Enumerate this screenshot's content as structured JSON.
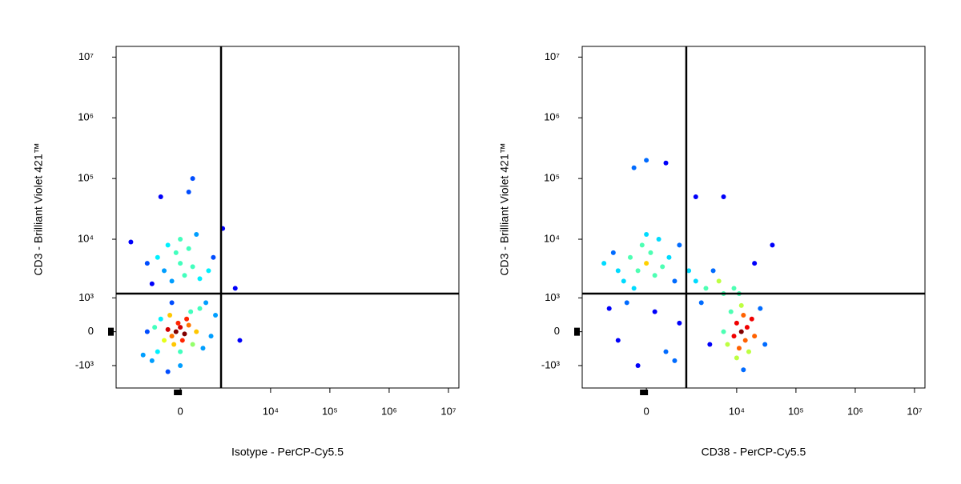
{
  "chart_data": [
    {
      "type": "scatter",
      "xlabel": "Isotype - PerCP-Cy5.5",
      "ylabel": "CD3 - Brilliant Violet 421™",
      "scale": "biexponential",
      "xlim": [
        -3600,
        15000000
      ],
      "ylim": [
        -2500,
        15000000
      ],
      "xticks": [
        0,
        {
          "value": 10000,
          "label": "10⁴"
        },
        {
          "value": 100000,
          "label": "10⁵"
        },
        {
          "value": 1000000,
          "label": "10⁶"
        },
        {
          "value": 10000000,
          "label": "10⁷"
        }
      ],
      "yticks": [
        {
          "value": -1000,
          "label": "-10³"
        },
        0,
        {
          "value": 1000,
          "label": "10³"
        },
        {
          "value": 10000,
          "label": "10⁴"
        },
        {
          "value": 100000,
          "label": "10⁵"
        },
        {
          "value": 1000000,
          "label": "10⁶"
        },
        {
          "value": 10000000,
          "label": "10⁷"
        }
      ],
      "gate": {
        "x": 1400,
        "y": 1200
      },
      "x": [
        -100,
        0,
        -200,
        100,
        -50,
        50,
        -300,
        200,
        -150,
        150,
        -400,
        300,
        -250,
        250,
        0,
        -500,
        400,
        -600,
        500,
        -700,
        600,
        -800,
        700,
        -1000,
        900,
        0,
        -200,
        -1200,
        1100,
        -300,
        -200,
        100,
        -400,
        300,
        0,
        -600,
        500,
        -100,
        200,
        -800,
        800,
        -300,
        0,
        -1000,
        1000,
        400,
        -500,
        300,
        200,
        2500,
        3000,
        -2000,
        1500
      ],
      "y": [
        0,
        100,
        -100,
        -50,
        200,
        -200,
        50,
        150,
        -300,
        300,
        -200,
        -300,
        400,
        500,
        -500,
        300,
        0,
        -500,
        600,
        100,
        -400,
        -800,
        800,
        0,
        -100,
        -1000,
        800,
        -600,
        400,
        -1300,
        2000,
        2500,
        3000,
        3500,
        4000,
        5000,
        2200,
        6000,
        7000,
        1800,
        3000,
        8000,
        10000,
        4000,
        5000,
        12000,
        50000,
        100000,
        60000,
        1500,
        -200,
        9000,
        15000
      ]
    },
    {
      "type": "scatter",
      "xlabel": "CD38 - PerCP-Cy5.5",
      "ylabel": "CD3 - Brilliant Violet 421™",
      "scale": "biexponential",
      "xlim": [
        -3600,
        15000000
      ],
      "ylim": [
        -2500,
        15000000
      ],
      "xticks": [
        0,
        {
          "value": 10000,
          "label": "10⁴"
        },
        {
          "value": 100000,
          "label": "10⁵"
        },
        {
          "value": 1000000,
          "label": "10⁶"
        },
        {
          "value": 10000000,
          "label": "10⁷"
        }
      ],
      "yticks": [
        {
          "value": -1000,
          "label": "-10³"
        },
        0,
        {
          "value": 1000,
          "label": "10³"
        },
        {
          "value": 10000,
          "label": "10⁴"
        },
        {
          "value": 100000,
          "label": "10⁵"
        },
        {
          "value": 1000000,
          "label": "10⁶"
        },
        {
          "value": 10000000,
          "label": "10⁷"
        }
      ],
      "gate": {
        "x": 1350,
        "y": 1200
      },
      "x": [
        -200,
        0,
        200,
        -400,
        100,
        -600,
        400,
        -100,
        300,
        -800,
        600,
        -300,
        800,
        -1000,
        0,
        1000,
        -1500,
        1500,
        -500,
        200,
        -800,
        500,
        -200,
        1000,
        -1200,
        800,
        2000,
        3000,
        4000,
        2500,
        5000,
        3500,
        6000,
        20000,
        40000,
        12000,
        10000,
        14000,
        11000,
        13000,
        9000,
        15000,
        12000,
        10000,
        16000,
        8000,
        18000,
        7000,
        20000,
        11000,
        13000,
        25000,
        6000,
        30000,
        9000,
        0,
        -300,
        500,
        2000,
        6000
      ],
      "y": [
        3000,
        4000,
        2500,
        5000,
        6000,
        2000,
        3500,
        8000,
        10000,
        3000,
        5000,
        1500,
        2000,
        6000,
        12000,
        8000,
        4000,
        3000,
        800,
        500,
        -200,
        -500,
        -1000,
        200,
        600,
        -800,
        2000,
        1500,
        3000,
        800,
        2000,
        -300,
        1200,
        4000,
        8000,
        0,
        200,
        -200,
        -400,
        400,
        -100,
        100,
        700,
        -700,
        -500,
        500,
        300,
        -300,
        -100,
        1200,
        -1200,
        600,
        0,
        -300,
        1500,
        200000,
        150000,
        180000,
        50000,
        50000
      ]
    }
  ]
}
